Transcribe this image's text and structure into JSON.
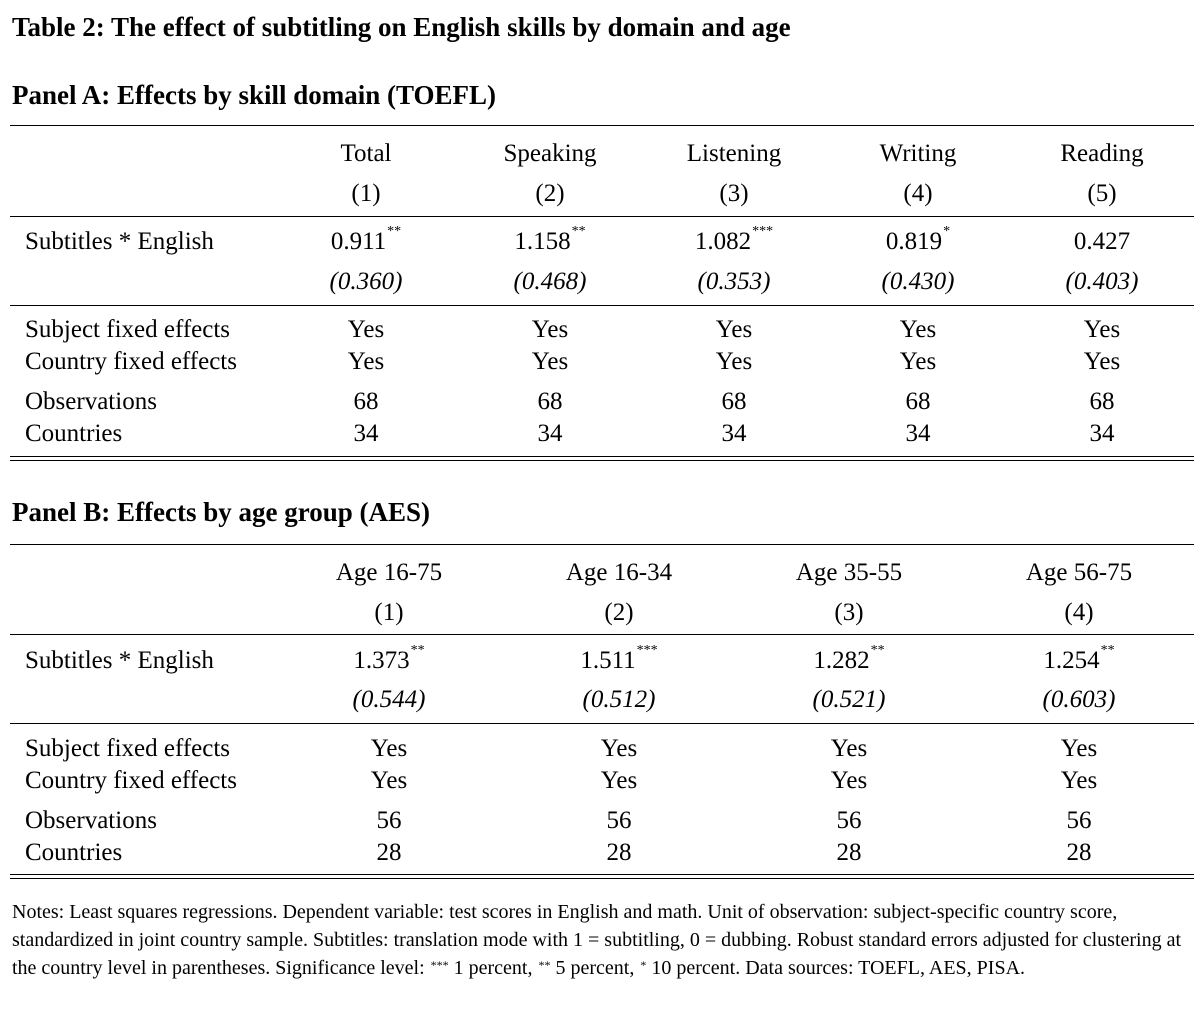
{
  "title": "Table 2: The effect of subtitling on English skills by domain and age",
  "panel_a": {
    "title": "Panel A: Effects by skill domain (TOEFL)",
    "columns": [
      {
        "name": "Total",
        "num": "(1)",
        "coef": "0.911",
        "stars": "**",
        "se": "(0.360)",
        "subject_fe": "Yes",
        "country_fe": "Yes",
        "obs": "68",
        "countries": "34"
      },
      {
        "name": "Speaking",
        "num": "(2)",
        "coef": "1.158",
        "stars": "**",
        "se": "(0.468)",
        "subject_fe": "Yes",
        "country_fe": "Yes",
        "obs": "68",
        "countries": "34"
      },
      {
        "name": "Listening",
        "num": "(3)",
        "coef": "1.082",
        "stars": "***",
        "se": "(0.353)",
        "subject_fe": "Yes",
        "country_fe": "Yes",
        "obs": "68",
        "countries": "34"
      },
      {
        "name": "Writing",
        "num": "(4)",
        "coef": "0.819",
        "stars": "*",
        "se": "(0.430)",
        "subject_fe": "Yes",
        "country_fe": "Yes",
        "obs": "68",
        "countries": "34"
      },
      {
        "name": "Reading",
        "num": "(5)",
        "coef": "0.427",
        "stars": "",
        "se": "(0.403)",
        "subject_fe": "Yes",
        "country_fe": "Yes",
        "obs": "68",
        "countries": "34"
      }
    ]
  },
  "panel_b": {
    "title": "Panel B: Effects by age group (AES)",
    "columns": [
      {
        "name": "Age 16-75",
        "num": "(1)",
        "coef": "1.373",
        "stars": "**",
        "se": "(0.544)",
        "subject_fe": "Yes",
        "country_fe": "Yes",
        "obs": "56",
        "countries": "28"
      },
      {
        "name": "Age 16-34",
        "num": "(2)",
        "coef": "1.511",
        "stars": "***",
        "se": "(0.512)",
        "subject_fe": "Yes",
        "country_fe": "Yes",
        "obs": "56",
        "countries": "28"
      },
      {
        "name": "Age 35-55",
        "num": "(3)",
        "coef": "1.282",
        "stars": "**",
        "se": "(0.521)",
        "subject_fe": "Yes",
        "country_fe": "Yes",
        "obs": "56",
        "countries": "28"
      },
      {
        "name": "Age 56-75",
        "num": "(4)",
        "coef": "1.254",
        "stars": "**",
        "se": "(0.603)",
        "subject_fe": "Yes",
        "country_fe": "Yes",
        "obs": "56",
        "countries": "28"
      }
    ]
  },
  "row_labels": {
    "subtitles": "Subtitles * English",
    "subject_fe": "Subject fixed effects",
    "country_fe": "Country fixed effects",
    "obs": "Observations",
    "countries": "Countries"
  },
  "notes": {
    "part1": "Notes: Least squares regressions. Dependent variable: test scores in English and math. Unit of observation: subject-specific country score, standardized in joint country sample. Subtitles: translation mode with 1 = subtitling, 0 = dubbing. Robust standard errors adjusted for clustering at the country level in parentheses. Significance level: ",
    "s3": "***",
    "part2": " 1 percent, ",
    "s2": "**",
    "part3": " 5 percent, ",
    "s1": "*",
    "part4": " 10 percent. Data sources: TOEFL, AES, PISA."
  }
}
